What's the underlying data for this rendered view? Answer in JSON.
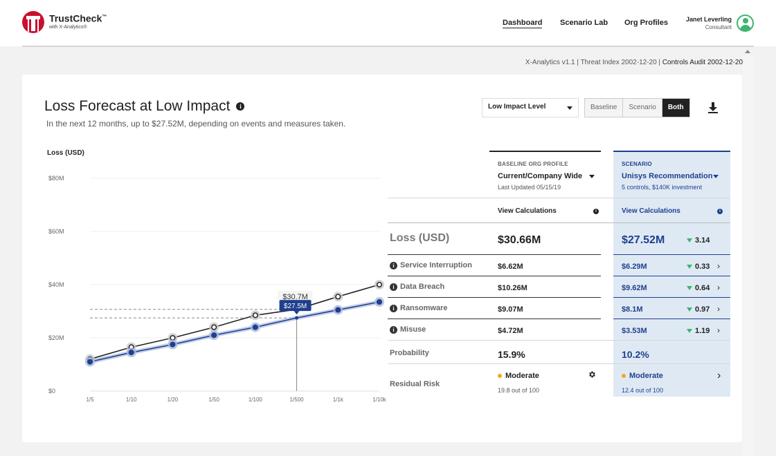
{
  "brand": {
    "name": "TrustCheck",
    "tm": "™",
    "sub": "with X-Analytics®"
  },
  "nav": {
    "dashboard": "Dashboard",
    "scenario_lab": "Scenario Lab",
    "org_profiles": "Org Profiles"
  },
  "user": {
    "name": "Janet Leverling",
    "role": "Consultant"
  },
  "meta": {
    "version": "X-Analytics v1.1 | Threat Index 2002-12-20 |",
    "controls": "Controls Audit 2002-12-20"
  },
  "card": {
    "title": "Loss Forecast at Low Impact",
    "info": "i",
    "subtitle": "In the next 12 months, up to $27.52M, depending on events and measures taken."
  },
  "controls": {
    "impact_select": "Low Impact Level",
    "toggle": [
      "Baseline",
      "Scenario",
      "Both"
    ],
    "active_toggle": "Both"
  },
  "chart_data": {
    "type": "line",
    "ylabel": "Loss (USD)",
    "categories": [
      "1/5",
      "1/10",
      "1/20",
      "1/50",
      "1/100",
      "1/500",
      "1/1k",
      "1/10k"
    ],
    "ylim": [
      0,
      80
    ],
    "yticks": [
      "$0",
      "$20M",
      "$40M",
      "$60M",
      "$80M"
    ],
    "series": [
      {
        "values": [
          12,
          16.5,
          20,
          24,
          28.5,
          30.7,
          35.5,
          40
        ],
        "color": "#222222"
      },
      {
        "values": [
          11,
          14.5,
          17.5,
          21,
          24,
          27.5,
          30.5,
          33.5
        ],
        "color": "#1f3f8e"
      }
    ],
    "annotations": [
      {
        "label": "$30.7M",
        "category": "1/500",
        "value": 30.7
      },
      {
        "label": "$27.5M",
        "category": "1/500",
        "value": 27.5
      }
    ]
  },
  "table": {
    "baseline": {
      "label": "BASELINE ORG PROFILE",
      "profile": "Current/Company Wide",
      "note": "Last Updated 05/15/19",
      "view": "View Calculations"
    },
    "scenario": {
      "label": "SCENARIO",
      "profile": "Unisys Recommendation",
      "note": "5 controls, $140K investment",
      "view": "View Calculations"
    },
    "loss_label": "Loss (USD)",
    "loss": {
      "baseline": "$30.66M",
      "scenario": "$27.52M",
      "delta": "3.14"
    },
    "rows": [
      {
        "label": "Service Interruption",
        "baseline": "$6.62M",
        "scenario": "$6.29M",
        "delta": "0.33"
      },
      {
        "label": "Data Breach",
        "baseline": "$10.26M",
        "scenario": "$9.62M",
        "delta": "0.64"
      },
      {
        "label": "Ransomware",
        "baseline": "$9.07M",
        "scenario": "$8.1M",
        "delta": "0.97"
      },
      {
        "label": "Misuse",
        "baseline": "$4.72M",
        "scenario": "$3.53M",
        "delta": "1.19"
      }
    ],
    "probability": {
      "label": "Probability",
      "baseline": "15.9%",
      "scenario": "10.2%"
    },
    "residual": {
      "label": "Residual Risk",
      "baseline": "Moderate",
      "baseline_score": "19.8 out of 100",
      "scenario": "Moderate",
      "scenario_score": "12.4 out of 100"
    }
  }
}
